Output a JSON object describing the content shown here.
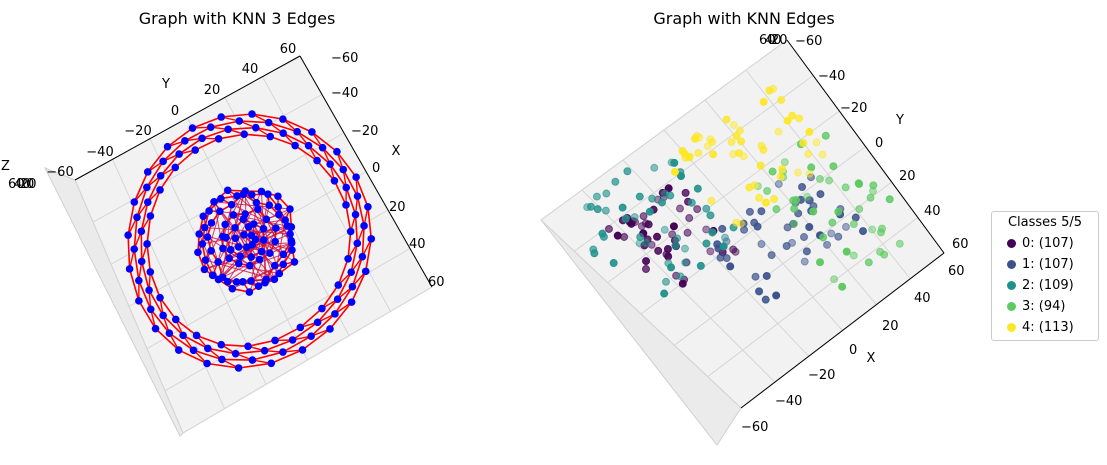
{
  "chart_data": [
    {
      "type": "scatter",
      "title": "Graph with KNN 3 Edges",
      "xlabel": "X",
      "ylabel": "Y",
      "zlabel": "Z",
      "xlim": [
        -60,
        60
      ],
      "ylim": [
        -60,
        60
      ],
      "zlim": [
        -60,
        60
      ],
      "x_ticks": [
        "60",
        "40",
        "20",
        "0",
        "−20",
        "−40",
        "−60"
      ],
      "y_ticks": [
        "60",
        "40",
        "20",
        "0",
        "−20",
        "−40",
        "−60"
      ],
      "z_ticks": [
        "−60",
        "−40",
        "−20",
        "0",
        "20",
        "40",
        "60"
      ],
      "node_color": "#0000ff",
      "edge_color": "#ff0000",
      "rings": [
        {
          "r": 55,
          "n": 24
        },
        {
          "r": 52,
          "n": 24
        },
        {
          "r": 49,
          "n": 24
        },
        {
          "r": 46,
          "n": 24
        },
        {
          "r": 22,
          "n": 18
        },
        {
          "r": 20,
          "n": 18
        },
        {
          "r": 18,
          "n": 18
        },
        {
          "r": 12,
          "n": 14
        },
        {
          "r": 8,
          "n": 10
        },
        {
          "r": 4,
          "n": 8
        }
      ],
      "grid": true
    },
    {
      "type": "scatter",
      "title": "Graph with KNN Edges",
      "xlabel": "X",
      "ylabel": "Y",
      "xlim": [
        -60,
        60
      ],
      "ylim": [
        -60,
        60
      ],
      "x_ticks": [
        "60",
        "40",
        "20",
        "0",
        "−20",
        "−40",
        "−60"
      ],
      "y_ticks": [
        "−60",
        "−40",
        "−20",
        "0",
        "20",
        "40",
        "60"
      ],
      "legend": {
        "title": "Classes 5/5",
        "placement": "right",
        "entries": [
          {
            "label": "0: (107)",
            "color": "#440154"
          },
          {
            "label": "1: (107)",
            "color": "#3b528b"
          },
          {
            "label": "2: (109)",
            "color": "#21918c"
          },
          {
            "label": "3: (94)",
            "color": "#5ec962"
          },
          {
            "label": "4: (113)",
            "color": "#fde725"
          }
        ]
      },
      "clusters": [
        {
          "class": 0,
          "x": [
            10,
            45
          ],
          "y": [
            -5,
            40
          ],
          "count": 107
        },
        {
          "class": 1,
          "x": [
            -40,
            25
          ],
          "y": [
            -30,
            10
          ],
          "count": 107
        },
        {
          "class": 2,
          "x": [
            5,
            55
          ],
          "y": [
            0,
            55
          ],
          "count": 109
        },
        {
          "class": 3,
          "x": [
            -55,
            -10
          ],
          "y": [
            -45,
            20
          ],
          "count": 94
        },
        {
          "class": 4,
          "x": [
            -45,
            10
          ],
          "y": [
            5,
            50
          ],
          "count": 113
        }
      ],
      "grid": true
    }
  ]
}
